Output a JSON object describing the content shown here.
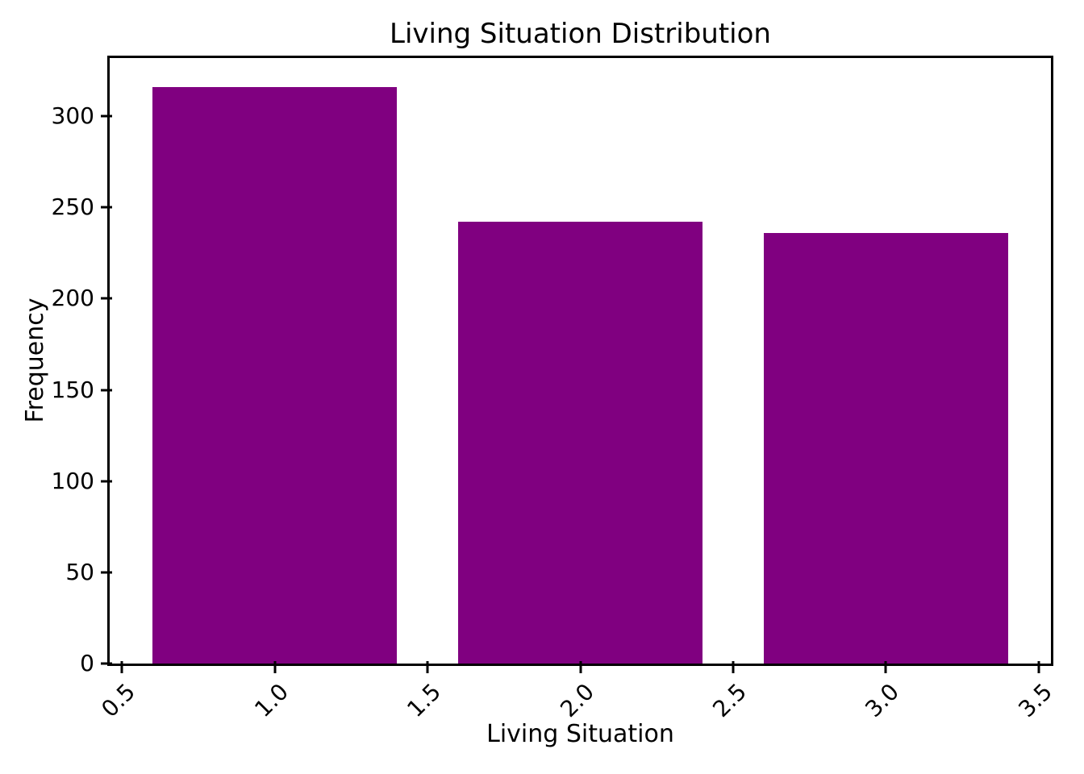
{
  "figure": {
    "background": "#ffffff",
    "axis_color": "#000000",
    "text_color": "#000000"
  },
  "chart_data": {
    "type": "bar",
    "title": "Living Situation Distribution",
    "xlabel": "Living Situation",
    "ylabel": "Frequency",
    "x": [
      1.0,
      2.0,
      3.0
    ],
    "values": [
      316,
      242,
      236
    ],
    "bar_width": 0.8,
    "bar_color": "#800080",
    "xlim": [
      0.46,
      3.54
    ],
    "ylim": [
      0,
      331.8
    ],
    "xticks": [
      0.5,
      1.0,
      1.5,
      2.0,
      2.5,
      3.0,
      3.5
    ],
    "xtick_labels": [
      "0.5",
      "1.0",
      "1.5",
      "2.0",
      "2.5",
      "3.0",
      "3.5"
    ],
    "xtick_rotation": 45,
    "yticks": [
      0,
      50,
      100,
      150,
      200,
      250,
      300
    ],
    "ytick_labels": [
      "0",
      "50",
      "100",
      "150",
      "200",
      "250",
      "300"
    ],
    "grid": false,
    "legend": "none"
  }
}
